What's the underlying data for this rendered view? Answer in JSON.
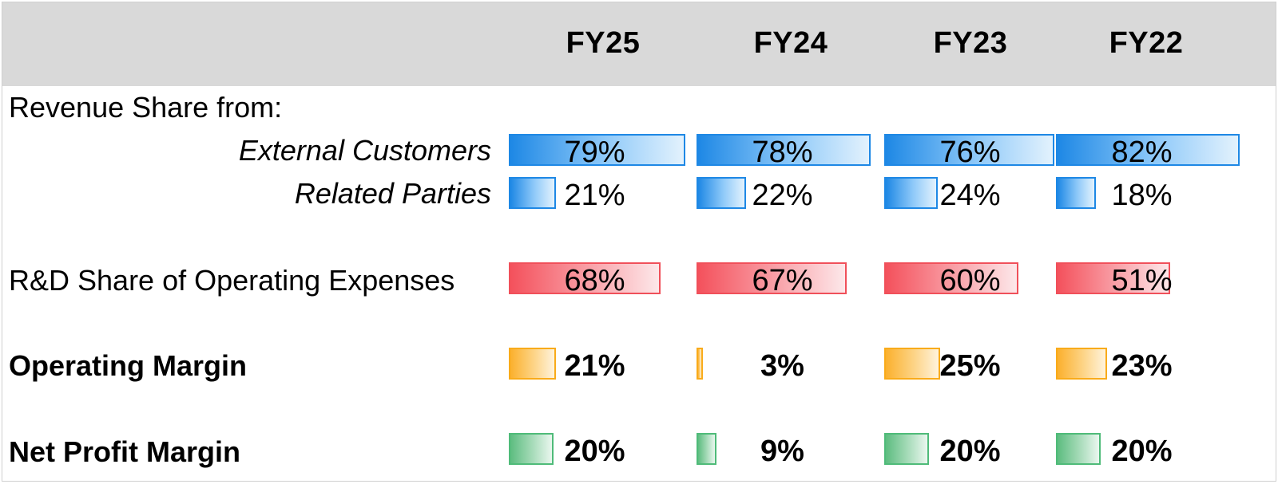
{
  "chart_data": {
    "type": "bar",
    "orientation": "horizontal",
    "categories": [
      "FY25",
      "FY24",
      "FY23",
      "FY22"
    ],
    "section_label": "Revenue Share from:",
    "series": [
      {
        "name": "External Customers",
        "values": [
          79,
          78,
          76,
          82
        ],
        "display": [
          "79%",
          "78%",
          "76%",
          "82%"
        ],
        "color": "#1e88e5",
        "style": "italic"
      },
      {
        "name": "Related Parties",
        "values": [
          21,
          22,
          24,
          18
        ],
        "display": [
          "21%",
          "22%",
          "24%",
          "18%"
        ],
        "color": "#1e88e5",
        "style": "italic"
      },
      {
        "name": "R&D Share of Operating Expenses",
        "values": [
          68,
          67,
          60,
          51
        ],
        "display": [
          "68%",
          "67%",
          "60%",
          "51%"
        ],
        "color": "#f0505a",
        "style": "normal"
      },
      {
        "name": "Operating Margin",
        "values": [
          21,
          3,
          25,
          23
        ],
        "display": [
          "21%",
          "3%",
          "25%",
          "23%"
        ],
        "color": "#f9ab1a",
        "style": "bold"
      },
      {
        "name": "Net Profit Margin",
        "values": [
          20,
          9,
          20,
          20
        ],
        "display": [
          "20%",
          "9%",
          "20%",
          "20%"
        ],
        "color": "#4fbb79",
        "style": "bold"
      }
    ],
    "grid": false,
    "legend": "none"
  }
}
